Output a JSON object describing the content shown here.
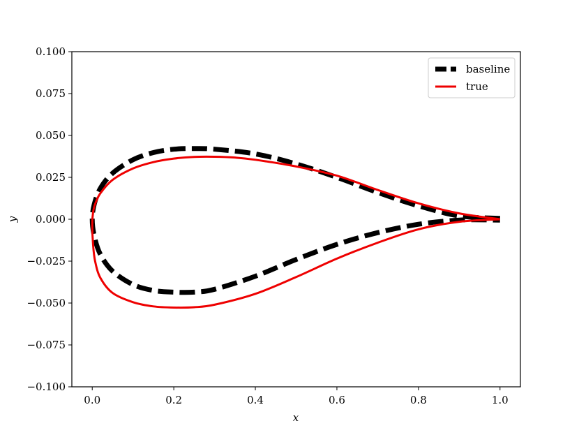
{
  "chart_data": {
    "type": "line",
    "xlabel": "x",
    "ylabel": "y",
    "xlim": [
      -0.05,
      1.05
    ],
    "ylim": [
      -0.1,
      0.1
    ],
    "x_ticks": [
      "0.0",
      "0.2",
      "0.4",
      "0.6",
      "0.8",
      "1.0"
    ],
    "y_ticks": [
      "0.100",
      "0.075",
      "0.050",
      "0.025",
      "0.000",
      "−0.025",
      "−0.050",
      "−0.075",
      "−0.100"
    ],
    "x_tick_values": [
      0.0,
      0.2,
      0.4,
      0.6,
      0.8,
      1.0
    ],
    "y_tick_values": [
      0.1,
      0.075,
      0.05,
      0.025,
      0.0,
      -0.025,
      -0.05,
      -0.075,
      -0.1
    ],
    "grid": false,
    "legend_position": "top-right",
    "series": [
      {
        "name": "baseline",
        "color": "#000000",
        "style": "dashed",
        "x": [
          1.0,
          0.9,
          0.8,
          0.7,
          0.6,
          0.5,
          0.4,
          0.3,
          0.25,
          0.2,
          0.15,
          0.1,
          0.05,
          0.02,
          0.005,
          0.0,
          0.005,
          0.02,
          0.05,
          0.1,
          0.15,
          0.2,
          0.25,
          0.3,
          0.4,
          0.5,
          0.6,
          0.7,
          0.8,
          0.9,
          1.0
        ],
        "y": [
          0.0005,
          0.002,
          0.008,
          0.016,
          0.025,
          0.033,
          0.039,
          0.0418,
          0.0422,
          0.0418,
          0.0398,
          0.0355,
          0.0275,
          0.0185,
          0.009,
          0.0,
          -0.01,
          -0.021,
          -0.031,
          -0.039,
          -0.0425,
          -0.0435,
          -0.0435,
          -0.0418,
          -0.034,
          -0.024,
          -0.015,
          -0.008,
          -0.003,
          -0.0005,
          -0.0005
        ]
      },
      {
        "name": "true",
        "color": "#ee0000",
        "style": "solid",
        "x": [
          1.0,
          0.9,
          0.8,
          0.7,
          0.6,
          0.5,
          0.4,
          0.35,
          0.3,
          0.25,
          0.2,
          0.15,
          0.1,
          0.05,
          0.02,
          0.007,
          0.002,
          0.0,
          0.002,
          0.007,
          0.02,
          0.05,
          0.1,
          0.15,
          0.2,
          0.25,
          0.3,
          0.4,
          0.5,
          0.6,
          0.7,
          0.8,
          0.9,
          1.0
        ],
        "y": [
          0.0,
          0.0035,
          0.0095,
          0.0175,
          0.026,
          0.0315,
          0.0355,
          0.0368,
          0.0373,
          0.0372,
          0.0362,
          0.0341,
          0.0303,
          0.0235,
          0.0155,
          0.009,
          0.004,
          -0.003,
          -0.015,
          -0.025,
          -0.035,
          -0.044,
          -0.0495,
          -0.052,
          -0.0527,
          -0.0525,
          -0.051,
          -0.0445,
          -0.0345,
          -0.0235,
          -0.014,
          -0.006,
          -0.0015,
          0.0
        ]
      }
    ]
  }
}
